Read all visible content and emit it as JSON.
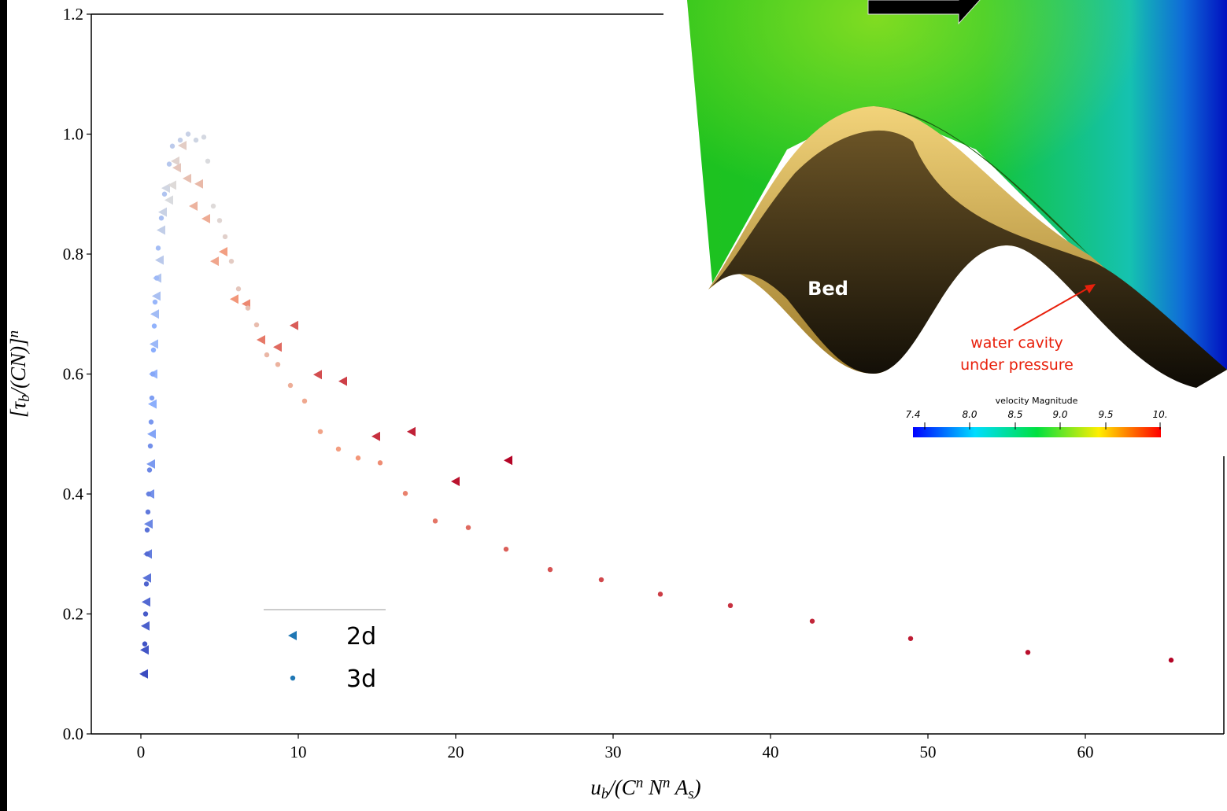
{
  "chart_data": {
    "type": "scatter",
    "xlabel": "u_b/(C^n N^n A_s)",
    "ylabel": "[τ_b/(CN)]^n",
    "xlim": [
      -3.15,
      68.8
    ],
    "ylim": [
      0,
      1.2
    ],
    "xticks": [
      0,
      10,
      20,
      30,
      40,
      50,
      60
    ],
    "yticks": [
      {
        "value": 0,
        "label": "0.0"
      },
      0.2,
      0.4,
      0.6,
      0.8,
      {
        "value": 1,
        "label": "1.0"
      },
      1.2
    ],
    "colormap": "coolwarm",
    "legend": "lower left",
    "series": [
      {
        "name": "2d",
        "marker": "triangle-left",
        "color": "#1f77b4",
        "x": [
          0.2,
          0.25,
          0.3,
          0.35,
          0.4,
          0.45,
          0.5,
          0.6,
          0.65,
          0.7,
          0.75,
          0.8,
          0.85,
          0.9,
          1.0,
          1.05,
          1.2,
          1.3,
          1.4,
          1.6,
          1.8,
          2.0,
          2.2,
          2.65,
          2.3,
          2.95,
          3.7,
          3.35,
          4.15,
          4.7,
          5.25,
          5.95,
          6.7,
          7.65,
          8.7,
          9.75,
          11.25,
          12.85,
          14.95,
          17.2,
          20.0,
          23.35
        ],
        "y": [
          0.1,
          0.14,
          0.18,
          0.22,
          0.26,
          0.3,
          0.35,
          0.4,
          0.45,
          0.5,
          0.55,
          0.6,
          0.65,
          0.7,
          0.73,
          0.76,
          0.79,
          0.84,
          0.87,
          0.91,
          0.89,
          0.915,
          0.955,
          0.981,
          0.944,
          0.926,
          0.917,
          0.88,
          0.859,
          0.788,
          0.804,
          0.725,
          0.717,
          0.657,
          0.645,
          0.681,
          0.599,
          0.588,
          0.496,
          0.504,
          0.421,
          0.456
        ]
      },
      {
        "name": "3d",
        "marker": "circle",
        "color": "#1f77b4",
        "x": [
          0.2,
          0.25,
          0.3,
          0.35,
          0.4,
          0.4,
          0.45,
          0.5,
          0.55,
          0.6,
          0.65,
          0.7,
          0.75,
          0.8,
          0.85,
          0.9,
          1.0,
          1.1,
          1.3,
          1.5,
          1.8,
          2.0,
          2.5,
          3.0,
          3.5,
          4.0,
          4.25,
          4.6,
          5.0,
          5.35,
          5.75,
          6.2,
          6.8,
          7.35,
          8.0,
          8.7,
          9.5,
          10.4,
          11.4,
          12.55,
          13.8,
          15.2,
          16.8,
          18.7,
          20.8,
          23.2,
          26.0,
          29.25,
          33.0,
          37.45,
          42.65,
          48.9,
          56.35,
          65.45
        ],
        "y": [
          0.1,
          0.15,
          0.2,
          0.25,
          0.3,
          0.34,
          0.37,
          0.4,
          0.44,
          0.48,
          0.52,
          0.56,
          0.6,
          0.64,
          0.68,
          0.72,
          0.76,
          0.81,
          0.86,
          0.9,
          0.95,
          0.98,
          0.99,
          1.0,
          0.99,
          0.995,
          0.955,
          0.88,
          0.856,
          0.829,
          0.788,
          0.742,
          0.71,
          0.682,
          0.632,
          0.616,
          0.581,
          0.555,
          0.504,
          0.475,
          0.46,
          0.452,
          0.401,
          0.355,
          0.344,
          0.308,
          0.274,
          0.257,
          0.233,
          0.214,
          0.188,
          0.159,
          0.136,
          0.123
        ]
      }
    ]
  },
  "inset": {
    "bed_label": "Bed",
    "annotation": [
      "water cavity",
      "under pressure"
    ],
    "colorbar_title": "velocity Magnitude",
    "colorbar_ticks": [
      "7.4",
      "8.0",
      "8.5",
      "9.0",
      "9.5",
      "10."
    ]
  }
}
